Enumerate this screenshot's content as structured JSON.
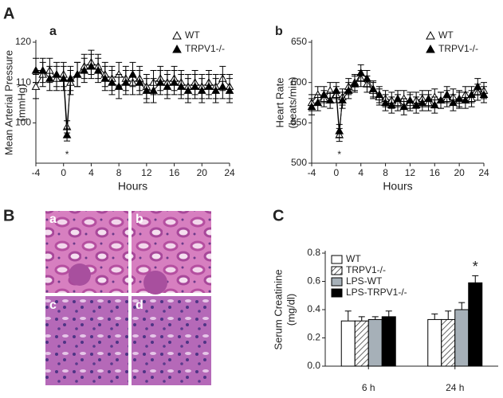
{
  "panel_letters": [
    "A",
    "B",
    "C"
  ],
  "histology": {
    "labels": [
      "a",
      "b",
      "c",
      "d"
    ]
  },
  "chart_data": [
    {
      "type": "line",
      "label": "a",
      "ylabel": [
        "Mean Arterial Pressure",
        "(mmHg)"
      ],
      "xlabel": "Hours",
      "x": [
        -4,
        -3,
        -2,
        -1,
        0,
        0.5,
        1,
        2,
        3,
        4,
        5,
        6,
        7,
        8,
        9,
        10,
        11,
        12,
        13,
        14,
        15,
        16,
        17,
        18,
        19,
        20,
        21,
        22,
        23,
        24
      ],
      "xlim": [
        -4,
        24
      ],
      "xticks": [
        -4,
        0,
        4,
        8,
        12,
        16,
        20,
        24
      ],
      "ylim": [
        90,
        120
      ],
      "yticks": [
        100,
        110,
        120
      ],
      "annotation": "*",
      "annotation_x": 0.5,
      "series": [
        {
          "name": "WT",
          "color": "#ffffff",
          "values": [
            109,
            112,
            113,
            111,
            112,
            99,
            110,
            112,
            114,
            115,
            114,
            112,
            111,
            112,
            111,
            110,
            111,
            109,
            110,
            111,
            110,
            111,
            110,
            109,
            110,
            109,
            110,
            109,
            111,
            109
          ],
          "errors": [
            3,
            3,
            3,
            3,
            3,
            1.5,
            3,
            3,
            3,
            3,
            3,
            3,
            3,
            3,
            3,
            3,
            3,
            3,
            3,
            3,
            3,
            3,
            3,
            3,
            3,
            3,
            3,
            3,
            3,
            3
          ]
        },
        {
          "name": "TRPV1-/-",
          "color": "#000000",
          "values": [
            113,
            113,
            111,
            112,
            111,
            97,
            111,
            112,
            113,
            114,
            113,
            111,
            110,
            109,
            110,
            112,
            110,
            108,
            108,
            110,
            109,
            110,
            109,
            108,
            109,
            108,
            109,
            108,
            109,
            108
          ],
          "errors": [
            3,
            3,
            3,
            3,
            3,
            1.5,
            3,
            3,
            3,
            3,
            3,
            3,
            3,
            3,
            3,
            3,
            3,
            3,
            3,
            3,
            3,
            3,
            3,
            3,
            3,
            3,
            3,
            3,
            3,
            3
          ]
        }
      ]
    },
    {
      "type": "line",
      "label": "b",
      "ylabel": [
        "Heart Rate",
        "(beats/min)"
      ],
      "xlabel": "Hours",
      "x": [
        -4,
        -3,
        -2,
        -1,
        0,
        0.5,
        1,
        2,
        3,
        4,
        5,
        6,
        7,
        8,
        9,
        10,
        11,
        12,
        13,
        14,
        15,
        16,
        17,
        18,
        19,
        20,
        21,
        22,
        23,
        24
      ],
      "xlim": [
        -4,
        24
      ],
      "xticks": [
        -4,
        0,
        4,
        8,
        12,
        16,
        20,
        24
      ],
      "ylim": [
        500,
        650
      ],
      "yticks": [
        500,
        550,
        600,
        650
      ],
      "annotation": "*",
      "annotation_x": 0.5,
      "series": [
        {
          "name": "WT",
          "color": "#ffffff",
          "values": [
            575,
            585,
            580,
            590,
            585,
            535,
            582,
            595,
            600,
            605,
            598,
            590,
            582,
            580,
            578,
            575,
            580,
            575,
            578,
            580,
            575,
            582,
            578,
            580,
            582,
            578,
            585,
            580,
            588,
            590
          ],
          "errors": [
            10,
            10,
            10,
            10,
            10,
            8,
            10,
            10,
            10,
            10,
            10,
            10,
            10,
            10,
            10,
            10,
            10,
            10,
            10,
            10,
            10,
            10,
            10,
            10,
            10,
            10,
            10,
            10,
            10,
            10
          ]
        },
        {
          "name": "TRPV1-/-",
          "color": "#000000",
          "values": [
            570,
            575,
            585,
            578,
            590,
            540,
            578,
            590,
            598,
            612,
            605,
            592,
            585,
            575,
            572,
            580,
            570,
            578,
            572,
            575,
            580,
            572,
            578,
            585,
            575,
            580,
            578,
            585,
            595,
            585
          ],
          "errors": [
            10,
            10,
            10,
            10,
            10,
            8,
            10,
            10,
            10,
            10,
            10,
            10,
            10,
            10,
            10,
            10,
            10,
            10,
            10,
            10,
            10,
            10,
            10,
            10,
            10,
            10,
            10,
            10,
            10,
            10
          ]
        }
      ]
    },
    {
      "type": "bar",
      "ylabel": [
        "Serum Creatinine",
        "(mg/dl)"
      ],
      "categories": [
        "6 h",
        "24 h"
      ],
      "ylim": [
        0,
        0.8
      ],
      "yticks": [
        {
          "value": 0,
          "label": "0.0"
        },
        0.2,
        0.4,
        0.6,
        0.8
      ],
      "annotation": "*",
      "series": [
        {
          "name": "WT",
          "color": "#ffffff",
          "values": [
            0.32,
            0.33
          ],
          "errors": [
            0.07,
            0.04
          ]
        },
        {
          "name": "TRPV1-/-",
          "color": "#ffffff",
          "hatch": true,
          "values": [
            0.32,
            0.33
          ],
          "errors": [
            0.03,
            0.06
          ]
        },
        {
          "name": "LPS-WT",
          "color": "#a6b0b8",
          "values": [
            0.33,
            0.4
          ],
          "errors": [
            0.02,
            0.05
          ]
        },
        {
          "name": "LPS-TRPV1-/-",
          "color": "#000000",
          "values": [
            0.35,
            0.59
          ],
          "errors": [
            0.04,
            0.05
          ]
        }
      ]
    }
  ]
}
